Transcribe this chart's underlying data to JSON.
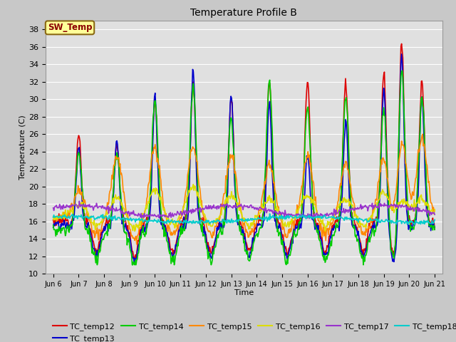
{
  "title": "Temperature Profile B",
  "xlabel": "Time",
  "ylabel": "Temperature (C)",
  "ylim": [
    10,
    39
  ],
  "yticks": [
    10,
    12,
    14,
    16,
    18,
    20,
    22,
    24,
    26,
    28,
    30,
    32,
    34,
    36,
    38
  ],
  "fig_facecolor": "#c8c8c8",
  "axes_facecolor": "#e0e0e0",
  "series_order": [
    "TC_temp12",
    "TC_temp13",
    "TC_temp14",
    "TC_temp15",
    "TC_temp16",
    "TC_temp17",
    "TC_temp18"
  ],
  "series": {
    "TC_temp12": {
      "color": "#dd0000",
      "lw": 1.2
    },
    "TC_temp13": {
      "color": "#0000cc",
      "lw": 1.2
    },
    "TC_temp14": {
      "color": "#00cc00",
      "lw": 1.2
    },
    "TC_temp15": {
      "color": "#ff8800",
      "lw": 1.2
    },
    "TC_temp16": {
      "color": "#dddd00",
      "lw": 1.2
    },
    "TC_temp17": {
      "color": "#9933cc",
      "lw": 1.2
    },
    "TC_temp18": {
      "color": "#00cccc",
      "lw": 1.2
    }
  },
  "sw_temp_box": {
    "text": "SW_Temp",
    "text_color": "#8b0000",
    "bg_color": "#ffff99",
    "border_color": "#8b6914"
  },
  "xtick_labels": [
    "Jun 6",
    "Jun 7",
    "Jun 8",
    "Jun 9",
    "Jun 10",
    "Jun 11",
    "Jun 12",
    "Jun 13",
    "Jun 14",
    "Jun 15",
    "Jun 16",
    "Jun 17",
    "Jun 18",
    "Jun 19",
    "Jun 20",
    "Jun 21"
  ],
  "num_points": 600
}
